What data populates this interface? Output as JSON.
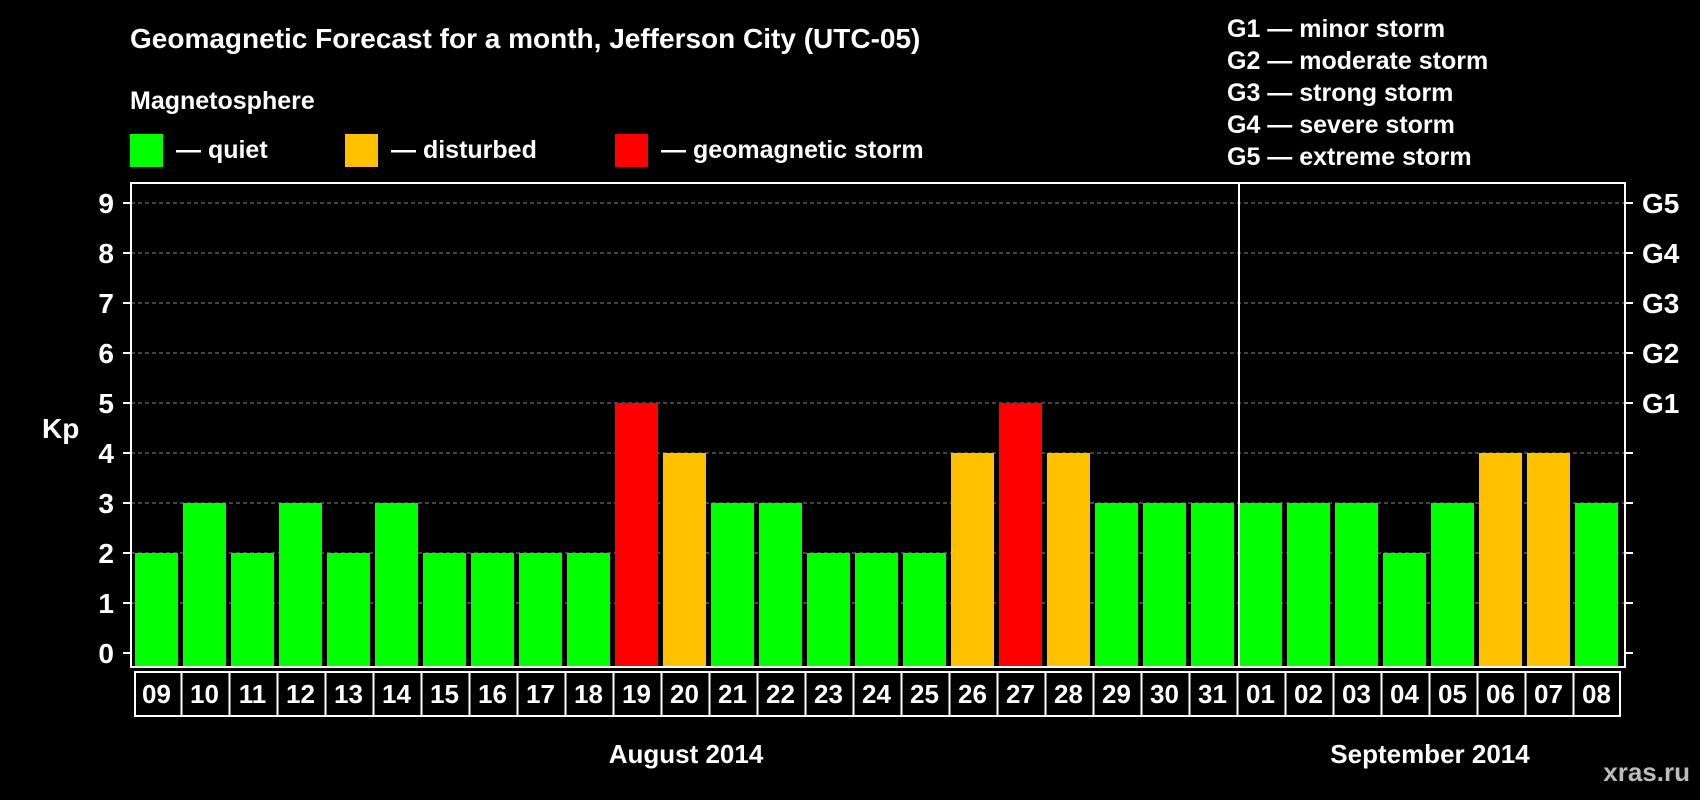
{
  "title": "Geomagnetic Forecast for a month, Jefferson City (UTC-05)",
  "magnetosphere_label": "Magnetosphere",
  "legend": [
    {
      "label": "— quiet",
      "color": "#00ff00"
    },
    {
      "label": "— disturbed",
      "color": "#ffc000"
    },
    {
      "label": "— geomagnetic storm",
      "color": "#ff0000"
    }
  ],
  "g_levels": [
    "G1 — minor storm",
    "G2 — moderate storm",
    "G3 — strong storm",
    "G4 — severe storm",
    "G5 — extreme storm"
  ],
  "months": [
    "August 2014",
    "September 2014"
  ],
  "watermark": "xras.ru",
  "colors": {
    "quiet": "#00ff00",
    "disturbed": "#ffc000",
    "storm": "#ff0000"
  },
  "chart_data": {
    "type": "bar",
    "ylabel": "Kp",
    "ylim": [
      0,
      9
    ],
    "yticks": [
      "0",
      "1",
      "2",
      "3",
      "4",
      "5",
      "6",
      "7",
      "8",
      "9"
    ],
    "right_axis_labels": [
      {
        "kp": 5,
        "label": "G1"
      },
      {
        "kp": 6,
        "label": "G2"
      },
      {
        "kp": 7,
        "label": "G3"
      },
      {
        "kp": 8,
        "label": "G4"
      },
      {
        "kp": 9,
        "label": "G5"
      }
    ],
    "categories": [
      "09",
      "10",
      "11",
      "12",
      "13",
      "14",
      "15",
      "16",
      "17",
      "18",
      "19",
      "20",
      "21",
      "22",
      "23",
      "24",
      "25",
      "26",
      "27",
      "28",
      "29",
      "30",
      "31",
      "01",
      "02",
      "03",
      "04",
      "05",
      "06",
      "07",
      "08"
    ],
    "values": [
      2,
      3,
      2,
      3,
      2,
      3,
      2,
      2,
      2,
      2,
      5,
      4,
      3,
      3,
      2,
      2,
      2,
      4,
      5,
      4,
      3,
      3,
      3,
      3,
      3,
      3,
      2,
      3,
      4,
      4,
      3
    ],
    "status": [
      "quiet",
      "quiet",
      "quiet",
      "quiet",
      "quiet",
      "quiet",
      "quiet",
      "quiet",
      "quiet",
      "quiet",
      "storm",
      "disturbed",
      "quiet",
      "quiet",
      "quiet",
      "quiet",
      "quiet",
      "disturbed",
      "storm",
      "disturbed",
      "quiet",
      "quiet",
      "quiet",
      "quiet",
      "quiet",
      "quiet",
      "quiet",
      "quiet",
      "disturbed",
      "disturbed",
      "quiet"
    ],
    "grid": true
  }
}
